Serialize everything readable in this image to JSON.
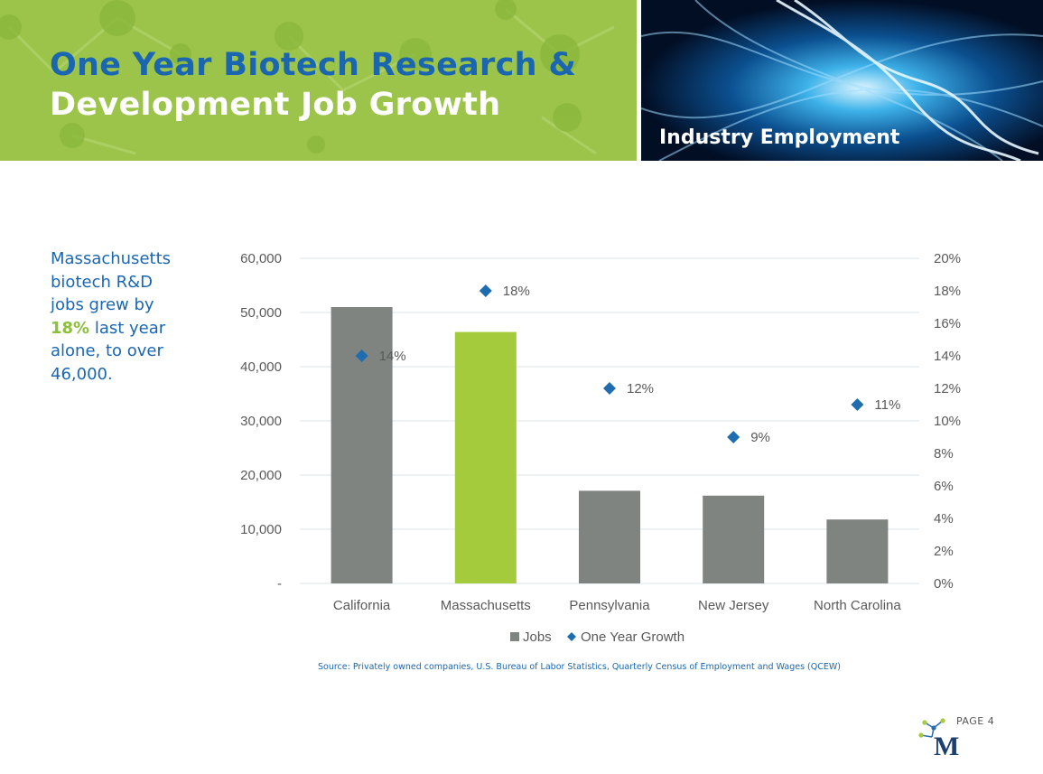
{
  "header": {
    "title_line1": "One Year Biotech Research &",
    "title_line2": "Development Job Growth",
    "section_label": "Industry Employment"
  },
  "sidebar": {
    "text_before": "Massachusetts biotech R&D jobs grew by",
    "highlight": "18%",
    "text_after": "last year alone, to over 46,000."
  },
  "footer": {
    "source": "Source: Privately owned companies, U.S. Bureau of Labor Statistics, Quarterly Census of Employment and Wages (QCEW)",
    "page_number": "PAGE 4",
    "logo_letter": "M"
  },
  "colors": {
    "bar_default": "#7f8480",
    "bar_highlight": "#a3cb3c",
    "marker": "#1d6db0",
    "title_blue": "#1a66b0",
    "header_green": "#9cc44a"
  },
  "chart_data": {
    "type": "bar",
    "categories": [
      "California",
      "Massachusetts",
      "Pennsylvania",
      "New Jersey",
      "North Carolina"
    ],
    "series": [
      {
        "name": "Jobs",
        "axis": "left",
        "type": "bar",
        "values": [
          51000,
          46400,
          17100,
          16200,
          11800
        ]
      },
      {
        "name": "One Year Growth",
        "axis": "right",
        "type": "scatter",
        "values": [
          0.14,
          0.18,
          0.12,
          0.09,
          0.11
        ],
        "labels": [
          "14%",
          "18%",
          "12%",
          "9%",
          "11%"
        ]
      }
    ],
    "highlight_category": "Massachusetts",
    "ylim": [
      0,
      60000
    ],
    "yticks": [
      0,
      10000,
      20000,
      30000,
      40000,
      50000,
      60000
    ],
    "ytick_labels": [
      "-",
      "10,000",
      "20,000",
      "30,000",
      "40,000",
      "50,000",
      "60,000"
    ],
    "y2lim": [
      0,
      0.2
    ],
    "y2ticks": [
      0,
      0.02,
      0.04,
      0.06,
      0.08,
      0.1,
      0.12,
      0.14,
      0.16,
      0.18,
      0.2
    ],
    "y2tick_labels": [
      "0%",
      "2%",
      "4%",
      "6%",
      "8%",
      "10%",
      "12%",
      "14%",
      "16%",
      "18%",
      "20%"
    ],
    "grid": true,
    "legend": "bottom"
  }
}
